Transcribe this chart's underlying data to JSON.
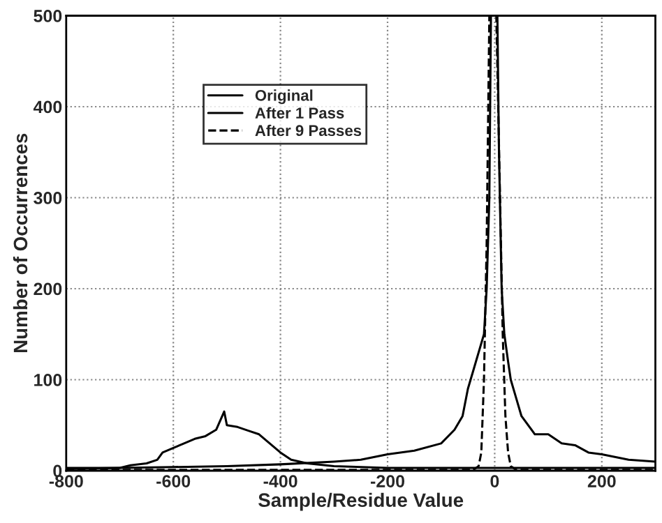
{
  "chart_data": {
    "type": "line",
    "xlabel": "Sample/Residue Value",
    "ylabel": "Number of Occurrences",
    "xlim": [
      -800,
      300
    ],
    "xticks": [
      -800,
      -600,
      -400,
      -200,
      0,
      200
    ],
    "ylim": [
      0,
      500
    ],
    "yticks": [
      0,
      100,
      200,
      300,
      400,
      500
    ],
    "grid": true,
    "legend": "top left",
    "marker": "none",
    "series": [
      {
        "name": "Original",
        "color": "#000000",
        "line_style": "solid",
        "x": [
          -800,
          -700,
          -680,
          -650,
          -630,
          -620,
          -600,
          -580,
          -560,
          -540,
          -520,
          -505,
          -500,
          -480,
          -460,
          -440,
          -420,
          -400,
          -380,
          -350,
          -300,
          -250,
          -200,
          -100,
          0,
          100,
          200,
          300
        ],
        "values": [
          3,
          3,
          6,
          8,
          12,
          20,
          25,
          30,
          35,
          38,
          45,
          65,
          50,
          48,
          44,
          40,
          30,
          20,
          12,
          8,
          5,
          4,
          3,
          3,
          3,
          3,
          3,
          3
        ]
      },
      {
        "name": "After 1 Pass",
        "color": "#000000",
        "line_style": "solid",
        "x": [
          -800,
          -700,
          -600,
          -500,
          -400,
          -300,
          -250,
          -200,
          -150,
          -100,
          -75,
          -60,
          -50,
          -40,
          -30,
          -20,
          -15,
          -10,
          -7,
          5,
          8,
          13,
          18,
          25,
          30,
          40,
          50,
          75,
          100,
          125,
          150,
          175,
          200,
          250,
          300
        ],
        "values": [
          2,
          3,
          4,
          5,
          7,
          10,
          12,
          18,
          22,
          30,
          45,
          60,
          90,
          110,
          130,
          150,
          200,
          300,
          500,
          500,
          350,
          200,
          150,
          120,
          100,
          80,
          60,
          40,
          40,
          30,
          28,
          20,
          18,
          12,
          10
        ]
      },
      {
        "name": "After 9 Passes",
        "color": "#000000",
        "line_style": "dashed",
        "x": [
          -800,
          -100,
          -40,
          -30,
          -25,
          -20,
          -15,
          -10,
          3,
          10,
          15,
          20,
          25,
          30,
          40,
          300
        ],
        "values": [
          1,
          1,
          1,
          5,
          20,
          100,
          250,
          500,
          500,
          300,
          150,
          60,
          20,
          5,
          1,
          1
        ]
      }
    ]
  }
}
